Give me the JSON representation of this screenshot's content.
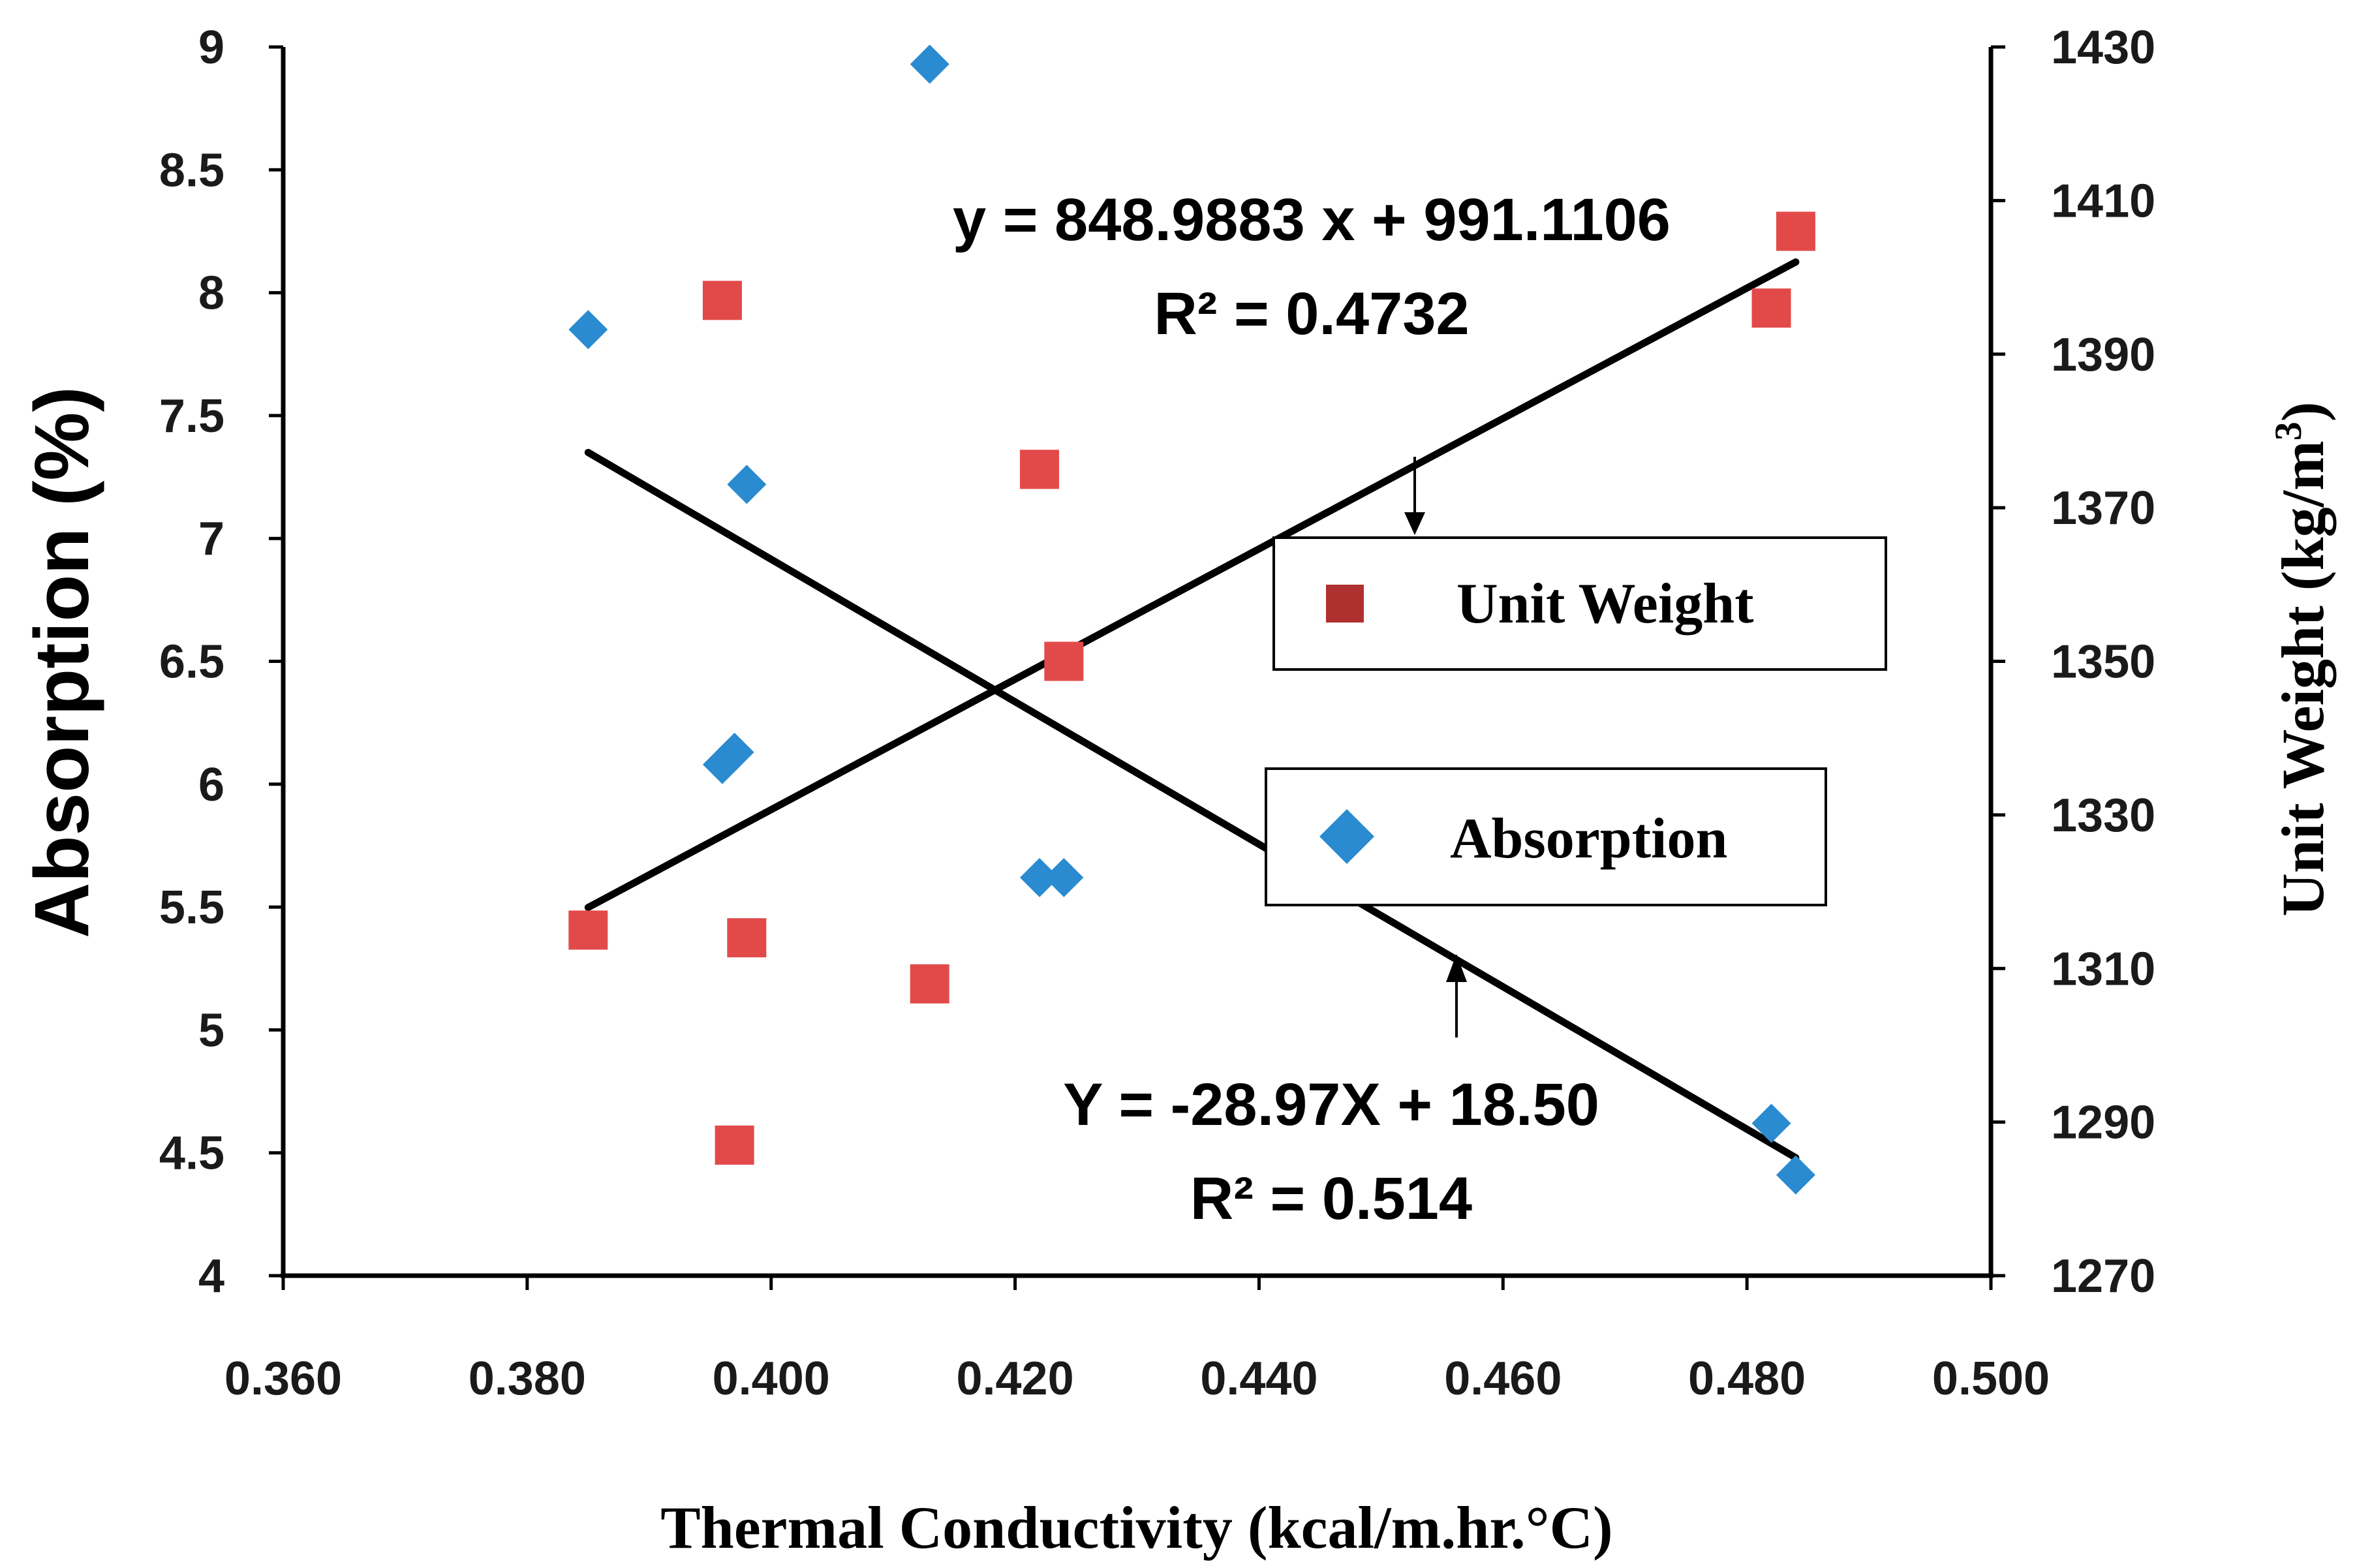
{
  "chart_data": {
    "type": "scatter",
    "title": "",
    "xlabel": "Thermal Conductivity (kcal/m.hr.°C)",
    "ylabel": "Absorption (%)",
    "y2label_main": "Unit Weight (kg/m",
    "y2label_sup": "3",
    "y2label_end": ")",
    "xlim": [
      0.36,
      0.5
    ],
    "ylim": [
      4,
      9
    ],
    "y2lim": [
      1270,
      1430
    ],
    "x_ticks": [
      0.36,
      0.38,
      0.4,
      0.42,
      0.44,
      0.46,
      0.48,
      0.5
    ],
    "x_tick_labels": [
      "0.360",
      "0.380",
      "0.400",
      "0.420",
      "0.440",
      "0.460",
      "0.480",
      "0.500"
    ],
    "y_ticks": [
      4,
      4.5,
      5,
      5.5,
      6,
      6.5,
      7,
      7.5,
      8,
      8.5,
      9
    ],
    "y_tick_labels": [
      "4",
      "4.5",
      "5",
      "5.5",
      "6",
      "6.5",
      "7",
      "7.5",
      "8",
      "8.5",
      "9"
    ],
    "y2_ticks": [
      1270,
      1290,
      1310,
      1330,
      1350,
      1370,
      1390,
      1410,
      1430
    ],
    "y2_tick_labels": [
      "1270",
      "1290",
      "1310",
      "1330",
      "1350",
      "1370",
      "1390",
      "1410",
      "1430"
    ],
    "grid": false,
    "series": [
      {
        "name": "Absorption",
        "axis": "left",
        "marker": "diamond",
        "color": "#2a8bd0",
        "x": [
          0.385,
          0.396,
          0.397,
          0.398,
          0.413,
          0.422,
          0.424,
          0.482,
          0.484
        ],
        "y": [
          7.85,
          6.08,
          6.13,
          7.22,
          8.93,
          5.62,
          5.62,
          4.62,
          4.41
        ]
      },
      {
        "name": "Unit Weight",
        "axis": "right",
        "marker": "square",
        "color": "#e24a4a",
        "x": [
          0.385,
          0.396,
          0.397,
          0.398,
          0.413,
          0.422,
          0.424,
          0.482,
          0.484
        ],
        "y": [
          1315,
          1397,
          1287,
          1314,
          1308,
          1375,
          1350,
          1396,
          1406
        ]
      }
    ],
    "trendlines": [
      {
        "series": "Unit Weight",
        "axis": "right",
        "x_range": [
          0.385,
          0.484
        ],
        "y_start": 1317.95,
        "y_end": 1402.0,
        "equation": "y = 848.9883 x + 991.1106",
        "r2_label": "R² = 0.4732"
      },
      {
        "series": "Absorption",
        "axis": "left",
        "x_range": [
          0.385,
          0.484
        ],
        "y_start": 7.35,
        "y_end": 4.48,
        "equation": "Y = -28.97X + 18.50",
        "r2_label": "R² = 0.514"
      }
    ],
    "legend": [
      {
        "label": "Unit Weight",
        "marker": "square",
        "color": "#b03030",
        "placement": "center-right"
      },
      {
        "label": "Absorption",
        "marker": "diamond",
        "color": "#2a8bd0",
        "placement": "center-right"
      }
    ],
    "annotations": [
      "arrow from top equation to Unit Weight trendline",
      "arrow from bottom equation to Absorption trendline"
    ]
  }
}
